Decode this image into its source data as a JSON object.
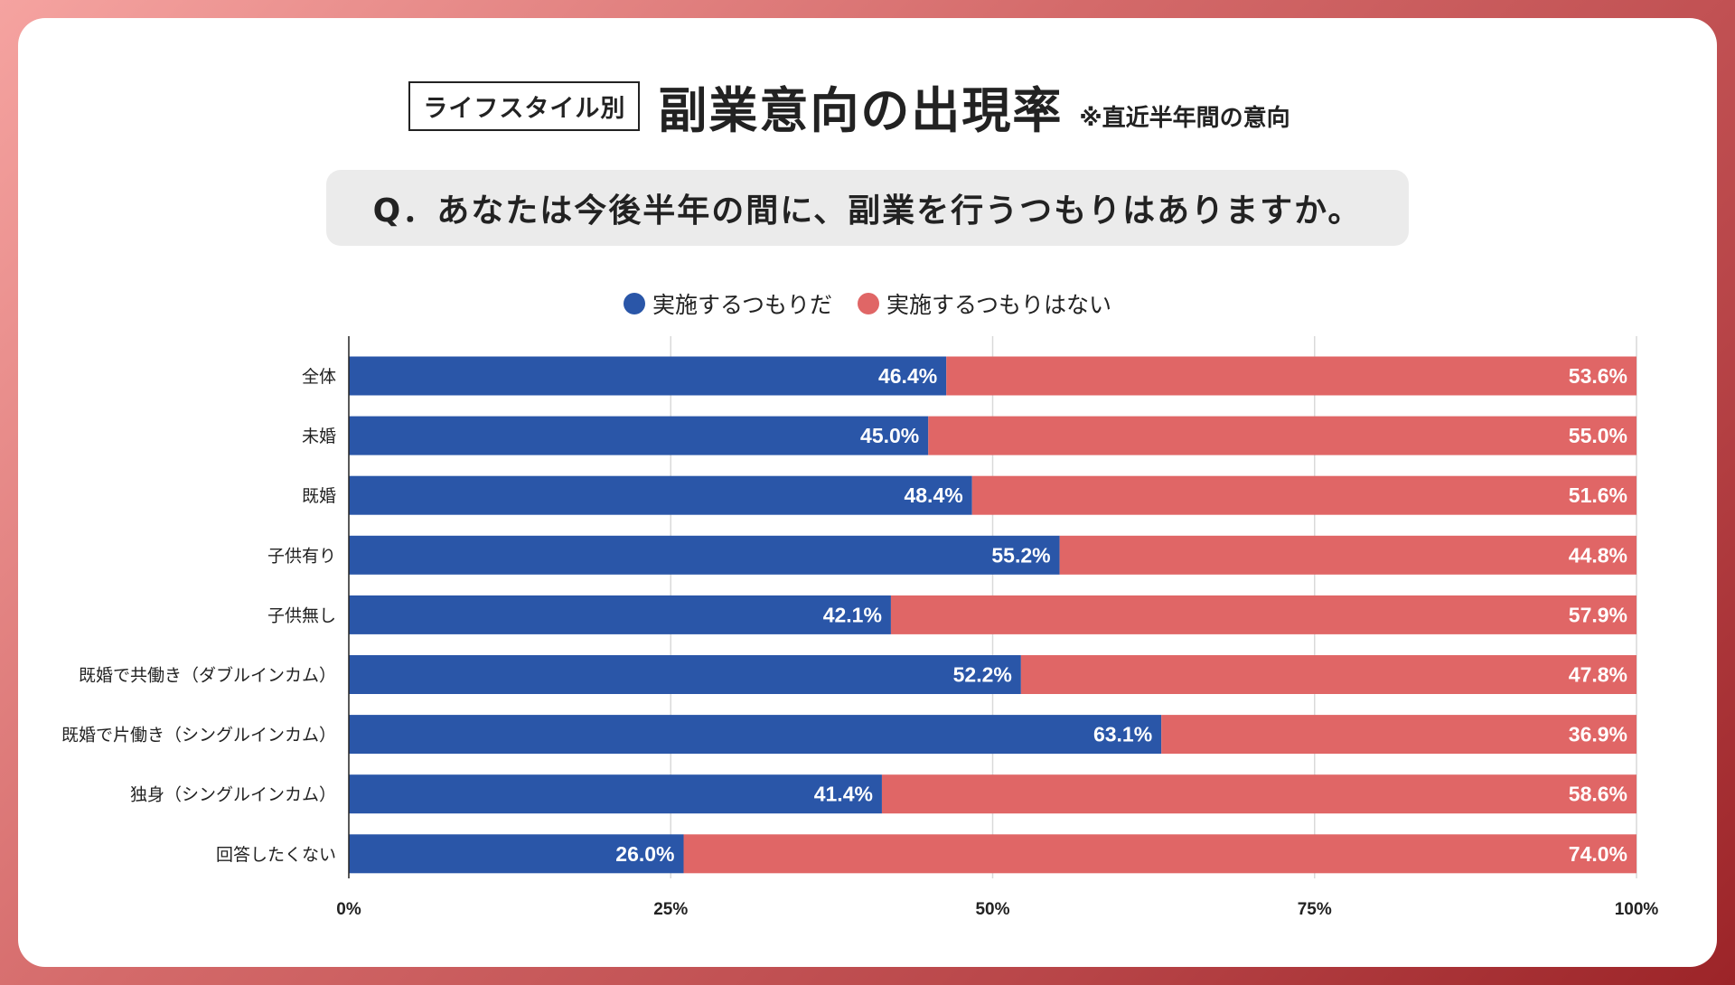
{
  "header": {
    "tag": "ライフスタイル別",
    "title": "副業意向の出現率",
    "note": "※直近半年間の意向"
  },
  "question": "Q．あなたは今後半年の間に、副業を行うつもりはありますか。",
  "colors": {
    "yes": "#2a56a8",
    "no": "#e06666"
  },
  "chart_data": {
    "type": "bar",
    "orientation": "horizontal",
    "stacked": true,
    "categories": [
      "全体",
      "未婚",
      "既婚",
      "子供有り",
      "子供無し",
      "既婚で共働き（ダブルインカム）",
      "既婚で片働き（シングルインカム）",
      "独身（シングルインカム）",
      "回答したくない"
    ],
    "series": [
      {
        "name": "実施するつもりだ",
        "values": [
          46.4,
          45.0,
          48.4,
          55.2,
          42.1,
          52.2,
          63.1,
          41.4,
          26.0
        ]
      },
      {
        "name": "実施するつもりはない",
        "values": [
          53.6,
          55.0,
          51.6,
          44.8,
          57.9,
          47.8,
          36.9,
          58.6,
          74.0
        ]
      }
    ],
    "xlim": [
      0,
      100
    ],
    "xticks": [
      "0%",
      "25%",
      "50%",
      "75%",
      "100%"
    ],
    "grid": true,
    "legend": "top-center"
  }
}
